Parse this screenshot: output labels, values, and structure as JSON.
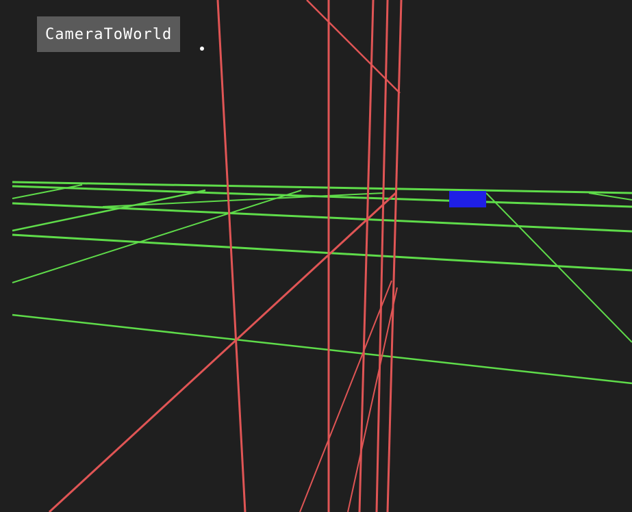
{
  "overlay": {
    "label": "CameraToWorld"
  },
  "colors": {
    "background": "#1f1f1f",
    "grid_lines": "#5fdc4a",
    "frustum_lines": "#e05555",
    "marker": "#1f1fe6",
    "label_background": "#5a5a5a"
  },
  "icons": {
    "cursor": "cursor-dot-icon"
  }
}
